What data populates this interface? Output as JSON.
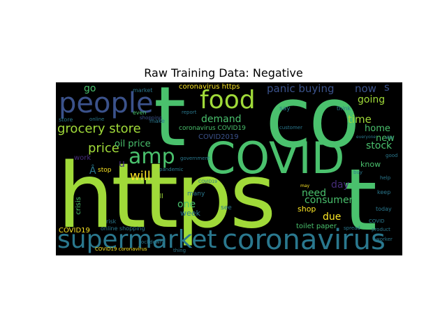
{
  "title": "Raw Training Data: Negative",
  "cloud": {
    "words_large": {
      "https": "https",
      "t": "t",
      "co": "co",
      "covid": "COVID",
      "coronavirus": "coronavirus",
      "supermarket": "supermarket",
      "people": "people",
      "food": "food",
      "amp": "amp",
      "grocery_store": "grocery store",
      "price": "price",
      "will": "will",
      "oil_price": "oil price",
      "demand": "demand",
      "panic_buying": "panic buying",
      "now": "now",
      "going": "going",
      "time": "time",
      "home": "home",
      "stock": "stock",
      "consumer": "consumer",
      "need": "need",
      "due": "due",
      "day": "day",
      "one": "one",
      "go": "go",
      "s": "s",
      "a_hat": "Â",
      "u": "u",
      "shop": "shop",
      "new": "new",
      "week": "week",
      "know": "know",
      "covid19_a": "COVID19",
      "covid2019": "COVID2019",
      "coronavirus_covid19": "coronavirus COVID19",
      "coronavirus_https": "coronavirus https",
      "toilet_paper": "toilet paper",
      "online_shopping": "online shopping",
      "covid19_coronavirus": "COVID19 coronavirus",
      "crisis": "crisis",
      "work": "work",
      "stop": "stop",
      "still": "still",
      "many": "many",
      "see": "see",
      "market": "market",
      "even": "even",
      "make": "make",
      "store": "store",
      "online": "online",
      "say": "say",
      "think": "think",
      "customer": "customer",
      "pandemic": "pandemic",
      "lockdown": "lockdown",
      "keep": "keep",
      "today": "today",
      "help": "help",
      "buy": "buy",
      "covid_small": "COVID",
      "risk": "risk",
      "government": "government",
      "report": "report",
      "spread": "spread",
      "product": "product",
      "worker": "worker",
      "thing": "thing",
      "shopping": "shopping",
      "everyone": "everyone",
      "via": "via",
      "good": "good",
      "may": "may",
      "covid19_b": "COVID19"
    }
  },
  "colors": {
    "light_green": "#a0da39",
    "green": "#4ac16d",
    "teal": "#2a788e",
    "blue": "#3b528b",
    "purple": "#472d7b",
    "yellow": "#fde725",
    "mid_teal": "#1fa187"
  }
}
